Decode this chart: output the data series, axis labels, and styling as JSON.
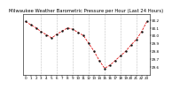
{
  "title": "Milwaukee Weather Barometric Pressure per Hour (Last 24 Hours)",
  "hours": [
    0,
    1,
    2,
    3,
    4,
    5,
    6,
    7,
    8,
    9,
    10,
    11,
    12,
    13,
    14,
    15,
    16,
    17,
    18,
    19,
    20,
    21,
    22,
    23
  ],
  "pressure": [
    30.18,
    30.14,
    30.1,
    30.05,
    30.01,
    29.97,
    30.02,
    30.06,
    30.1,
    30.08,
    30.04,
    30.0,
    29.9,
    29.8,
    29.68,
    29.58,
    29.62,
    29.68,
    29.74,
    29.8,
    29.88,
    29.95,
    30.05,
    30.18
  ],
  "line_color": "#dd0000",
  "marker_color": "#111111",
  "bg_color": "#ffffff",
  "grid_color": "#888888",
  "title_fontsize": 3.8,
  "tick_fontsize": 3.0,
  "ylim_min": 29.5,
  "ylim_max": 30.28,
  "yticks": [
    29.6,
    29.7,
    29.8,
    29.9,
    30.0,
    30.1,
    30.2
  ],
  "vgrid_positions": [
    3,
    6,
    9,
    12,
    15,
    18,
    21
  ]
}
